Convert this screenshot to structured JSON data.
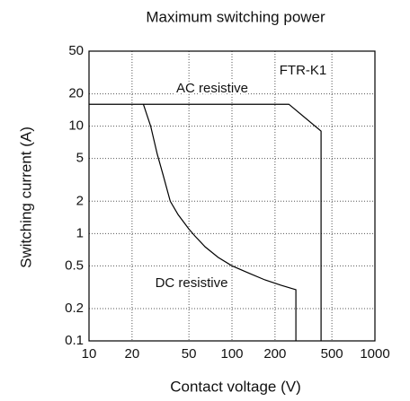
{
  "chart_data": {
    "type": "line",
    "title": "Maximum switching power",
    "xlabel": "Contact voltage (V)",
    "ylabel": "Switching current (A)",
    "xscale": "log",
    "yscale": "log",
    "grid": true,
    "xlim": [
      10,
      1000
    ],
    "ylim": [
      0.1,
      50
    ],
    "xticks": [
      10,
      20,
      50,
      100,
      200,
      500,
      1000
    ],
    "yticks": [
      0.1,
      0.2,
      0.5,
      1,
      2,
      5,
      10,
      20,
      50
    ],
    "series": [
      {
        "name": "AC resistive",
        "color": "#000000",
        "x": [
          10,
          250,
          420,
          420
        ],
        "values": [
          16,
          16,
          9,
          0.1
        ]
      },
      {
        "name": "DC resistive",
        "color": "#000000",
        "x": [
          24,
          27,
          30,
          33,
          37,
          42,
          50,
          55,
          65,
          80,
          100,
          130,
          170,
          220,
          280,
          280
        ],
        "values": [
          16,
          10,
          5.5,
          3.5,
          2,
          1.5,
          1.1,
          0.95,
          0.75,
          0.6,
          0.5,
          0.43,
          0.37,
          0.33,
          0.3,
          0.1
        ]
      }
    ],
    "annotations": [
      "FTR-K1"
    ]
  }
}
